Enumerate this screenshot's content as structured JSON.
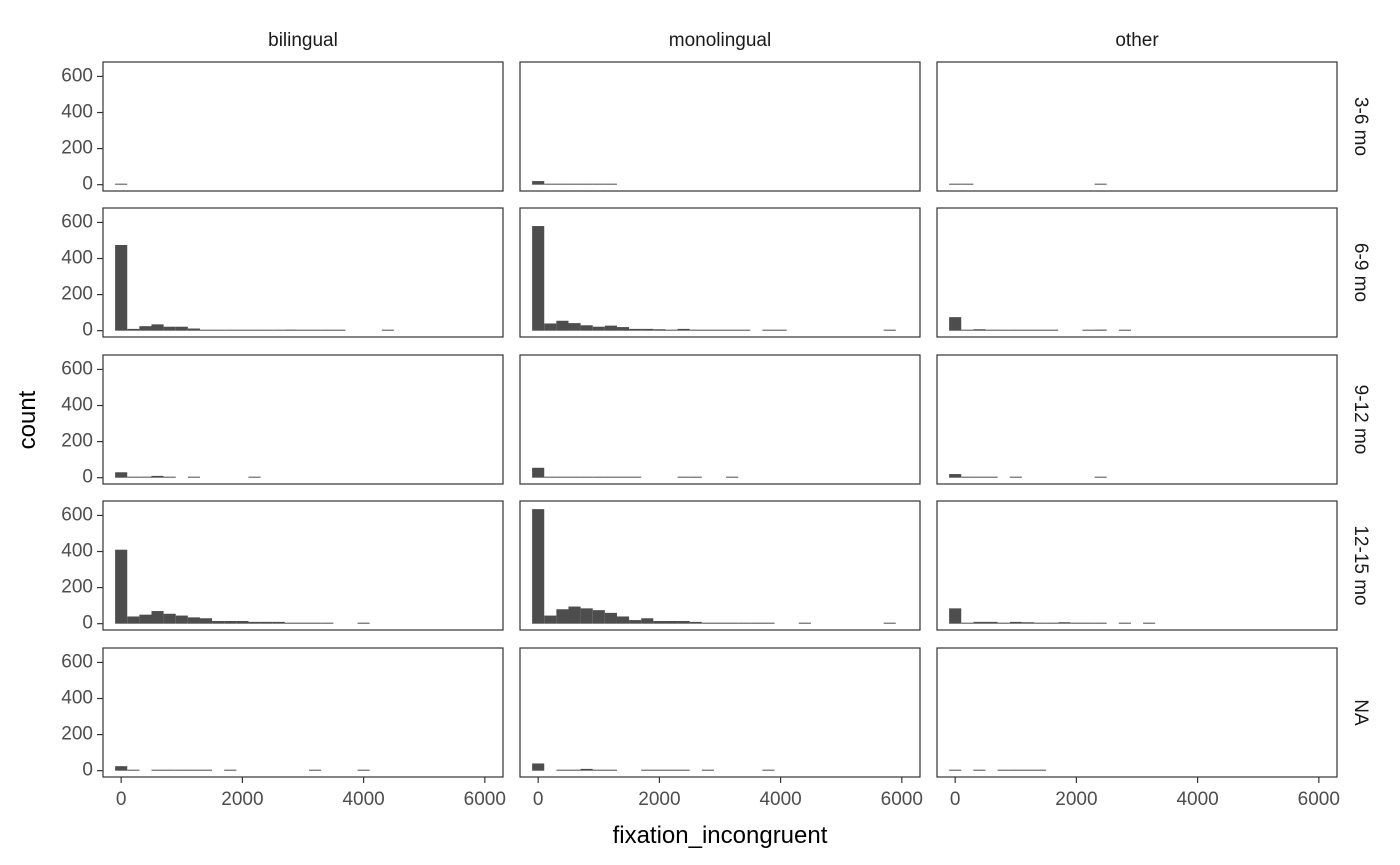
{
  "chart_data": {
    "type": "bar",
    "subtype": "faceted-histogram",
    "xlabel": "fixation_incongruent",
    "ylabel": "count",
    "xlim": [
      -300,
      6300
    ],
    "ylim": [
      -35,
      680
    ],
    "x_ticks": [
      0,
      2000,
      4000,
      6000
    ],
    "y_ticks": [
      0,
      200,
      400,
      600
    ],
    "bin_width": 200,
    "grid": false,
    "bar_color": "#4d4d4d",
    "panel_border_color": "#333333",
    "col_facets": [
      "bilingual",
      "monolingual",
      "other"
    ],
    "row_facets": [
      "3-6 mo",
      "6-9 mo",
      "9-12 mo",
      "12-15 mo",
      "NA"
    ],
    "panels": [
      {
        "col": "bilingual",
        "row": "3-6 mo",
        "bins": [
          [
            0,
            5
          ]
        ]
      },
      {
        "col": "monolingual",
        "row": "3-6 mo",
        "bins": [
          [
            0,
            20
          ],
          [
            200,
            4
          ],
          [
            400,
            3
          ],
          [
            600,
            2
          ],
          [
            800,
            1
          ],
          [
            1000,
            1
          ],
          [
            1200,
            1
          ]
        ]
      },
      {
        "col": "other",
        "row": "3-6 mo",
        "bins": [
          [
            0,
            3
          ],
          [
            200,
            1
          ],
          [
            2400,
            1
          ]
        ]
      },
      {
        "col": "bilingual",
        "row": "6-9 mo",
        "bins": [
          [
            0,
            475
          ],
          [
            200,
            10
          ],
          [
            400,
            25
          ],
          [
            600,
            35
          ],
          [
            800,
            22
          ],
          [
            1000,
            22
          ],
          [
            1200,
            12
          ],
          [
            1400,
            5
          ],
          [
            1600,
            5
          ],
          [
            1800,
            4
          ],
          [
            2000,
            3
          ],
          [
            2200,
            2
          ],
          [
            2400,
            2
          ],
          [
            2600,
            2
          ],
          [
            2800,
            6
          ],
          [
            3000,
            2
          ],
          [
            3200,
            1
          ],
          [
            3400,
            1
          ],
          [
            3600,
            2
          ],
          [
            4400,
            2
          ]
        ]
      },
      {
        "col": "monolingual",
        "row": "6-9 mo",
        "bins": [
          [
            0,
            580
          ],
          [
            200,
            40
          ],
          [
            400,
            55
          ],
          [
            600,
            42
          ],
          [
            800,
            30
          ],
          [
            1000,
            22
          ],
          [
            1200,
            28
          ],
          [
            1400,
            20
          ],
          [
            1600,
            10
          ],
          [
            1800,
            10
          ],
          [
            2000,
            8
          ],
          [
            2200,
            5
          ],
          [
            2400,
            10
          ],
          [
            2600,
            4
          ],
          [
            2800,
            4
          ],
          [
            3000,
            3
          ],
          [
            3200,
            3
          ],
          [
            3400,
            2
          ],
          [
            3800,
            1
          ],
          [
            4000,
            1
          ],
          [
            5800,
            1
          ]
        ]
      },
      {
        "col": "other",
        "row": "6-9 mo",
        "bins": [
          [
            0,
            75
          ],
          [
            200,
            2
          ],
          [
            400,
            8
          ],
          [
            600,
            3
          ],
          [
            800,
            3
          ],
          [
            1000,
            3
          ],
          [
            1200,
            3
          ],
          [
            1400,
            2
          ],
          [
            1600,
            2
          ],
          [
            2200,
            1
          ],
          [
            2400,
            6
          ],
          [
            2800,
            1
          ]
        ]
      },
      {
        "col": "bilingual",
        "row": "9-12 mo",
        "bins": [
          [
            0,
            30
          ],
          [
            200,
            5
          ],
          [
            400,
            3
          ],
          [
            600,
            10
          ],
          [
            800,
            5
          ],
          [
            1200,
            1
          ],
          [
            2200,
            1
          ]
        ]
      },
      {
        "col": "monolingual",
        "row": "9-12 mo",
        "bins": [
          [
            0,
            55
          ],
          [
            200,
            3
          ],
          [
            400,
            4
          ],
          [
            600,
            3
          ],
          [
            800,
            3
          ],
          [
            1000,
            2
          ],
          [
            1200,
            3
          ],
          [
            1400,
            2
          ],
          [
            1600,
            2
          ],
          [
            2400,
            1
          ],
          [
            2600,
            1
          ],
          [
            3200,
            1
          ]
        ]
      },
      {
        "col": "other",
        "row": "9-12 mo",
        "bins": [
          [
            0,
            20
          ],
          [
            200,
            3
          ],
          [
            400,
            2
          ],
          [
            600,
            1
          ],
          [
            1000,
            1
          ],
          [
            2400,
            1
          ]
        ]
      },
      {
        "col": "bilingual",
        "row": "12-15 mo",
        "bins": [
          [
            0,
            410
          ],
          [
            200,
            40
          ],
          [
            400,
            50
          ],
          [
            600,
            70
          ],
          [
            800,
            55
          ],
          [
            1000,
            45
          ],
          [
            1200,
            35
          ],
          [
            1400,
            30
          ],
          [
            1600,
            15
          ],
          [
            1800,
            15
          ],
          [
            2000,
            15
          ],
          [
            2200,
            10
          ],
          [
            2400,
            10
          ],
          [
            2600,
            10
          ],
          [
            2800,
            3
          ],
          [
            3000,
            5
          ],
          [
            3200,
            3
          ],
          [
            3400,
            3
          ],
          [
            4000,
            5
          ]
        ]
      },
      {
        "col": "monolingual",
        "row": "12-15 mo",
        "bins": [
          [
            0,
            635
          ],
          [
            200,
            45
          ],
          [
            400,
            80
          ],
          [
            600,
            95
          ],
          [
            800,
            85
          ],
          [
            1000,
            75
          ],
          [
            1200,
            60
          ],
          [
            1400,
            40
          ],
          [
            1600,
            20
          ],
          [
            1800,
            30
          ],
          [
            2000,
            15
          ],
          [
            2200,
            15
          ],
          [
            2400,
            15
          ],
          [
            2600,
            10
          ],
          [
            2800,
            5
          ],
          [
            3000,
            5
          ],
          [
            3200,
            5
          ],
          [
            3400,
            3
          ],
          [
            3600,
            3
          ],
          [
            3800,
            3
          ],
          [
            4400,
            5
          ],
          [
            5800,
            5
          ]
        ]
      },
      {
        "col": "other",
        "row": "12-15 mo",
        "bins": [
          [
            0,
            85
          ],
          [
            200,
            5
          ],
          [
            400,
            10
          ],
          [
            600,
            10
          ],
          [
            800,
            5
          ],
          [
            1000,
            10
          ],
          [
            1200,
            8
          ],
          [
            1400,
            5
          ],
          [
            1600,
            3
          ],
          [
            1800,
            8
          ],
          [
            2000,
            3
          ],
          [
            2200,
            3
          ],
          [
            2400,
            2
          ],
          [
            2800,
            3
          ],
          [
            3200,
            3
          ]
        ]
      },
      {
        "col": "bilingual",
        "row": "NA",
        "bins": [
          [
            0,
            25
          ],
          [
            200,
            2
          ],
          [
            600,
            5
          ],
          [
            800,
            2
          ],
          [
            1000,
            2
          ],
          [
            1200,
            2
          ],
          [
            1400,
            2
          ],
          [
            1800,
            2
          ],
          [
            3200,
            2
          ],
          [
            4000,
            2
          ]
        ]
      },
      {
        "col": "monolingual",
        "row": "NA",
        "bins": [
          [
            0,
            40
          ],
          [
            400,
            5
          ],
          [
            600,
            5
          ],
          [
            800,
            10
          ],
          [
            1000,
            5
          ],
          [
            1200,
            3
          ],
          [
            1800,
            2
          ],
          [
            2000,
            2
          ],
          [
            2200,
            2
          ],
          [
            2400,
            2
          ],
          [
            2800,
            2
          ],
          [
            3800,
            1
          ]
        ]
      },
      {
        "col": "other",
        "row": "NA",
        "bins": [
          [
            0,
            3
          ],
          [
            400,
            3
          ],
          [
            800,
            2
          ],
          [
            1000,
            2
          ],
          [
            1200,
            2
          ],
          [
            1400,
            2
          ]
        ]
      }
    ]
  }
}
